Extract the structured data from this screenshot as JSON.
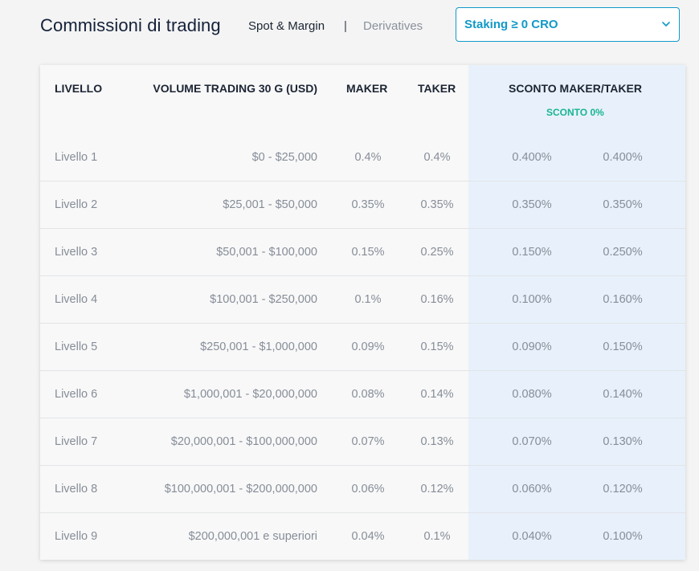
{
  "header": {
    "title": "Commissioni di trading",
    "tabs": [
      {
        "label": "Spot & Margin",
        "active": true
      },
      {
        "label": "Derivatives",
        "active": false
      }
    ],
    "separator": "|",
    "dropdown": {
      "value": "Staking ≥ 0 CRO",
      "icon": "chevron-down-icon"
    }
  },
  "colors": {
    "accent": "#1199c8",
    "discount_label": "#19b493",
    "discount_bg": "#e8f1fb"
  },
  "table": {
    "columns": {
      "level": "LIVELLO",
      "volume": "VOLUME TRADING 30 G (USD)",
      "maker": "MAKER",
      "taker": "TAKER",
      "discount": "SCONTO MAKER/TAKER",
      "discount_sub": "SCONTO 0%"
    },
    "rows": [
      {
        "level": "Livello 1",
        "volume": "$0 - $25,000",
        "maker": "0.4%",
        "taker": "0.4%",
        "dmaker": "0.400%",
        "dtaker": "0.400%"
      },
      {
        "level": "Livello 2",
        "volume": "$25,001 - $50,000",
        "maker": "0.35%",
        "taker": "0.35%",
        "dmaker": "0.350%",
        "dtaker": "0.350%"
      },
      {
        "level": "Livello 3",
        "volume": "$50,001 - $100,000",
        "maker": "0.15%",
        "taker": "0.25%",
        "dmaker": "0.150%",
        "dtaker": "0.250%"
      },
      {
        "level": "Livello 4",
        "volume": "$100,001 - $250,000",
        "maker": "0.1%",
        "taker": "0.16%",
        "dmaker": "0.100%",
        "dtaker": "0.160%"
      },
      {
        "level": "Livello 5",
        "volume": "$250,001 - $1,000,000",
        "maker": "0.09%",
        "taker": "0.15%",
        "dmaker": "0.090%",
        "dtaker": "0.150%"
      },
      {
        "level": "Livello 6",
        "volume": "$1,000,001 - $20,000,000",
        "maker": "0.08%",
        "taker": "0.14%",
        "dmaker": "0.080%",
        "dtaker": "0.140%"
      },
      {
        "level": "Livello 7",
        "volume": "$20,000,001 - $100,000,000",
        "maker": "0.07%",
        "taker": "0.13%",
        "dmaker": "0.070%",
        "dtaker": "0.130%"
      },
      {
        "level": "Livello 8",
        "volume": "$100,000,001 - $200,000,000",
        "maker": "0.06%",
        "taker": "0.12%",
        "dmaker": "0.060%",
        "dtaker": "0.120%"
      },
      {
        "level": "Livello 9",
        "volume": "$200,000,001 e superiori",
        "maker": "0.04%",
        "taker": "0.1%",
        "dmaker": "0.040%",
        "dtaker": "0.100%"
      }
    ]
  }
}
